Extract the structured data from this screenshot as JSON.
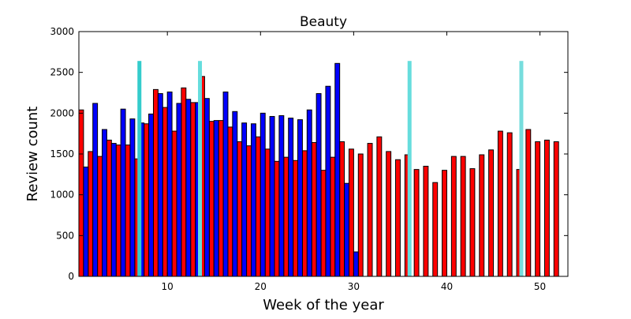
{
  "chart_data": {
    "type": "bar",
    "title": "Beauty",
    "xlabel": "Week of the year",
    "ylabel": "Review count",
    "xlim": [
      0.5,
      53
    ],
    "ylim": [
      0,
      3000
    ],
    "xticks": [
      10,
      20,
      30,
      40,
      50
    ],
    "yticks": [
      0,
      500,
      1000,
      1500,
      2000,
      2500,
      3000
    ],
    "grid": false,
    "series": [
      {
        "color": "#ff0000",
        "x": [
          1,
          2,
          3,
          4,
          5,
          6,
          7,
          8,
          9,
          10,
          11,
          12,
          13,
          14,
          15,
          16,
          17,
          18,
          19,
          20,
          21,
          22,
          23,
          24,
          25,
          26,
          27,
          28,
          29,
          30,
          31,
          32,
          33,
          34,
          35,
          36,
          37,
          38,
          39,
          40,
          41,
          42,
          43,
          44,
          45,
          46,
          47,
          48,
          49,
          50,
          51,
          52
        ],
        "values": [
          2040,
          1530,
          1470,
          1670,
          1610,
          1610,
          1440,
          1870,
          2290,
          2070,
          1780,
          2310,
          2130,
          2450,
          1900,
          1910,
          1830,
          1650,
          1600,
          1710,
          1560,
          1410,
          1460,
          1420,
          1540,
          1640,
          1300,
          1460,
          1650,
          1560,
          1500,
          1630,
          1710,
          1530,
          1430,
          1490,
          1310,
          1350,
          1150,
          1300,
          1470,
          1470,
          1320,
          1490,
          1550,
          1780,
          1760,
          1310,
          1800,
          1650,
          1670,
          1650
        ]
      },
      {
        "color": "#0000ff",
        "x": [
          1,
          2,
          3,
          4,
          5,
          6,
          7,
          8,
          9,
          10,
          11,
          12,
          13,
          14,
          15,
          16,
          17,
          18,
          19,
          20,
          21,
          22,
          23,
          24,
          25,
          26,
          27,
          28,
          29,
          30
        ],
        "values": [
          1340,
          2120,
          1800,
          1630,
          2050,
          1930,
          1880,
          1990,
          2240,
          2260,
          2120,
          2170,
          2130,
          2180,
          1910,
          2260,
          2020,
          1880,
          1870,
          2000,
          1960,
          1970,
          1940,
          1920,
          2040,
          2240,
          2330,
          2610,
          1140,
          300
        ]
      }
    ],
    "markers": [
      {
        "x": 7,
        "color": "#33cccc"
      },
      {
        "x": 13.5,
        "color": "#66dddd"
      },
      {
        "x": 36,
        "color": "#66dddd"
      },
      {
        "x": 48,
        "color": "#77dddd"
      }
    ],
    "marker_top": 2640
  }
}
